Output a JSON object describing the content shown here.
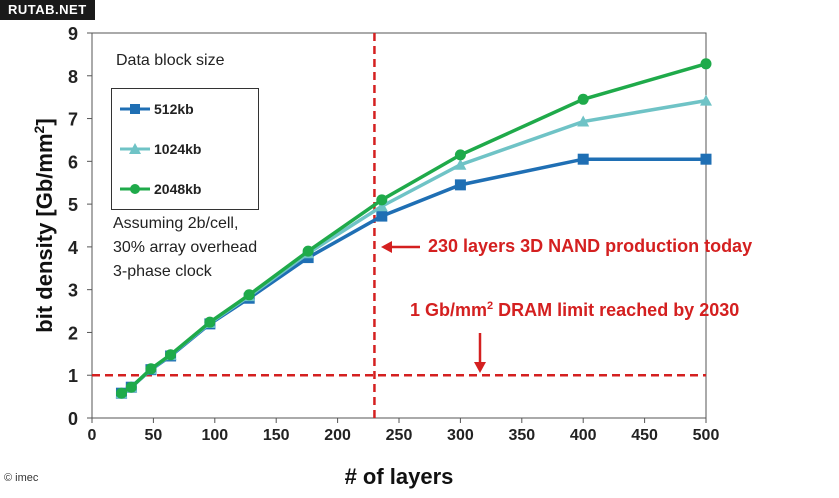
{
  "watermark": "RUTAB.NET",
  "copyright": "© imec",
  "legend_title": "Data block size",
  "note_lines": [
    "Assuming 2b/cell,",
    "30% array overhead",
    "3-phase clock"
  ],
  "annotations": {
    "nand": "230 layers 3D NAND production today",
    "dram_prefix": "1 Gb/mm",
    "dram_sup": "2",
    "dram_suffix": " DRAM limit reached by 2030"
  },
  "colors": {
    "s512": "#1f6fb4",
    "s1024": "#6fc3c6",
    "s2048": "#1faa4a",
    "ref": "#d42020"
  },
  "chart_data": {
    "type": "line",
    "xlabel": "# of layers",
    "ylabel_prefix": "bit density [Gb/mm",
    "ylabel_sup": "2",
    "ylabel_suffix": "]",
    "xlim": [
      0,
      500
    ],
    "ylim": [
      0,
      9
    ],
    "xticks": [
      0,
      50,
      100,
      150,
      200,
      250,
      300,
      350,
      400,
      450,
      500
    ],
    "yticks": [
      0,
      1,
      2,
      3,
      4,
      5,
      6,
      7,
      8,
      9
    ],
    "grid": false,
    "series": [
      {
        "name": "512kb",
        "marker": "square",
        "x": [
          24,
          32,
          48,
          64,
          96,
          128,
          176,
          236,
          300,
          400,
          500
        ],
        "y": [
          0.58,
          0.72,
          1.13,
          1.45,
          2.2,
          2.8,
          3.75,
          4.72,
          5.45,
          6.05,
          6.05
        ]
      },
      {
        "name": "1024kb",
        "marker": "triangle",
        "x": [
          24,
          32,
          48,
          64,
          96,
          128,
          176,
          236,
          300,
          400,
          500
        ],
        "y": [
          0.58,
          0.72,
          1.14,
          1.47,
          2.22,
          2.85,
          3.85,
          4.95,
          5.92,
          6.93,
          7.42
        ]
      },
      {
        "name": "2048kb",
        "marker": "circle",
        "x": [
          24,
          32,
          48,
          64,
          96,
          128,
          176,
          236,
          300,
          400,
          500
        ],
        "y": [
          0.58,
          0.72,
          1.15,
          1.48,
          2.24,
          2.88,
          3.9,
          5.1,
          6.15,
          7.45,
          8.28
        ]
      }
    ],
    "reference_lines": [
      {
        "orientation": "vertical",
        "value": 230
      },
      {
        "orientation": "horizontal",
        "value": 1
      }
    ]
  }
}
